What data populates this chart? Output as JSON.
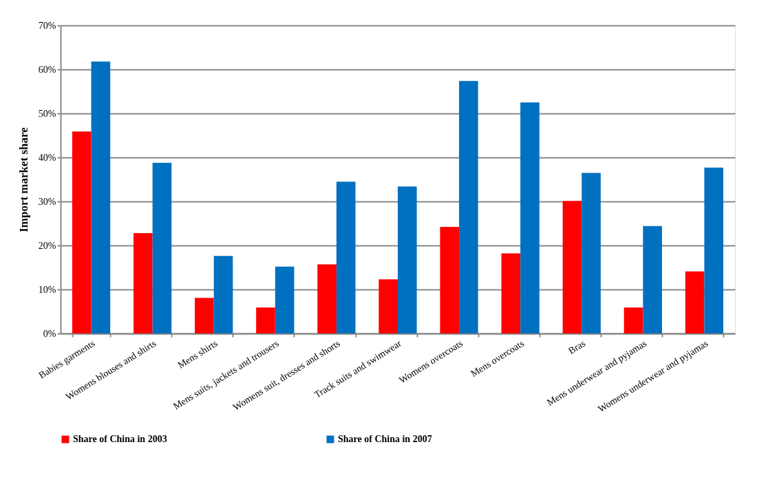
{
  "chart_data": {
    "type": "bar",
    "ylabel": "Import market share",
    "categories": [
      "Babies garments",
      "Womens blouses and shirts",
      "Mens shirts",
      "Mens suits, jackets and trousers",
      "Womens suit, dresses and shorts",
      "Track suits and swimwear",
      "Womens overcoats",
      "Mens overcoats",
      "Bras",
      "Mens underwear and pyjamas",
      "Womens underwear and pyjamas"
    ],
    "series": [
      {
        "name": "Share of China in 2003",
        "color": "#ff0000",
        "values": [
          45.9,
          22.8,
          8.1,
          5.9,
          15.7,
          12.3,
          24.2,
          18.2,
          30.1,
          5.9,
          14.1
        ]
      },
      {
        "name": "Share of China in 2007",
        "color": "#0070c0",
        "values": [
          61.8,
          38.8,
          17.6,
          15.2,
          34.5,
          33.4,
          57.4,
          52.5,
          36.5,
          24.4,
          37.7
        ]
      }
    ],
    "ylim": [
      0,
      70
    ],
    "yticks": [
      {
        "value": 0,
        "label": "0%"
      },
      {
        "value": 10,
        "label": "10%"
      },
      {
        "value": 20,
        "label": "20%"
      },
      {
        "value": 30,
        "label": "30%"
      },
      {
        "value": 40,
        "label": "40%"
      },
      {
        "value": 50,
        "label": "50%"
      },
      {
        "value": 60,
        "label": "60%"
      },
      {
        "value": 70,
        "label": "70%"
      }
    ],
    "grid": "y",
    "legend": "bottom"
  }
}
